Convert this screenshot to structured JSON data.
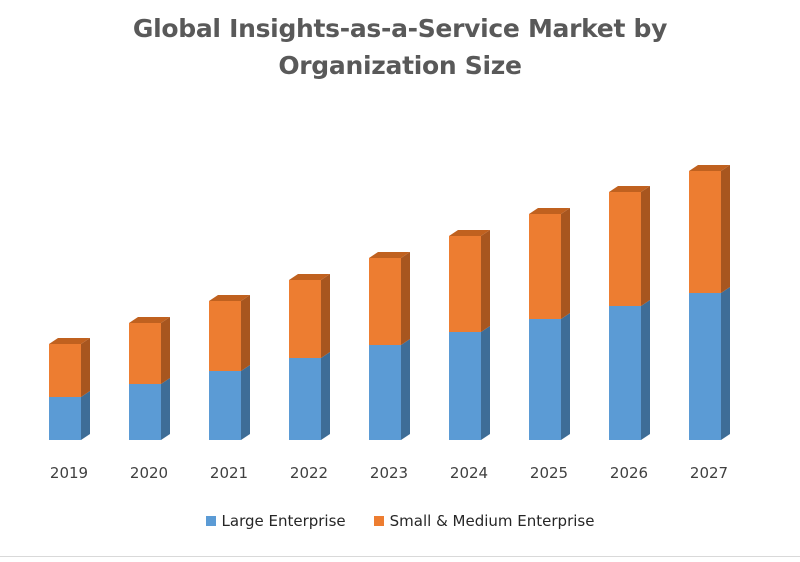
{
  "chart_data": {
    "type": "bar",
    "stacked": true,
    "style": "3d-column",
    "title": "Global Insights-as-a-Service Market by Organization Size",
    "title_lines": [
      "Global Insights-as-a-Service Market by",
      "Organization Size"
    ],
    "categories": [
      "2019",
      "2020",
      "2021",
      "2022",
      "2023",
      "2024",
      "2025",
      "2026",
      "2027"
    ],
    "series": [
      {
        "name": "Large Enterprise",
        "color": "#5b9bd5",
        "side_color": "#3e6d97",
        "values": [
          43,
          56,
          69,
          82,
          95,
          108,
          121,
          134,
          147
        ]
      },
      {
        "name": "Small & Medium Enterprise",
        "color": "#ed7d31",
        "side_color": "#a8561f",
        "values": [
          53,
          61,
          70,
          78,
          87,
          96,
          105,
          114,
          122
        ]
      }
    ],
    "ylim": [
      0,
      300
    ],
    "y_axis_visible": false,
    "grid": false,
    "legend_position": "bottom"
  }
}
